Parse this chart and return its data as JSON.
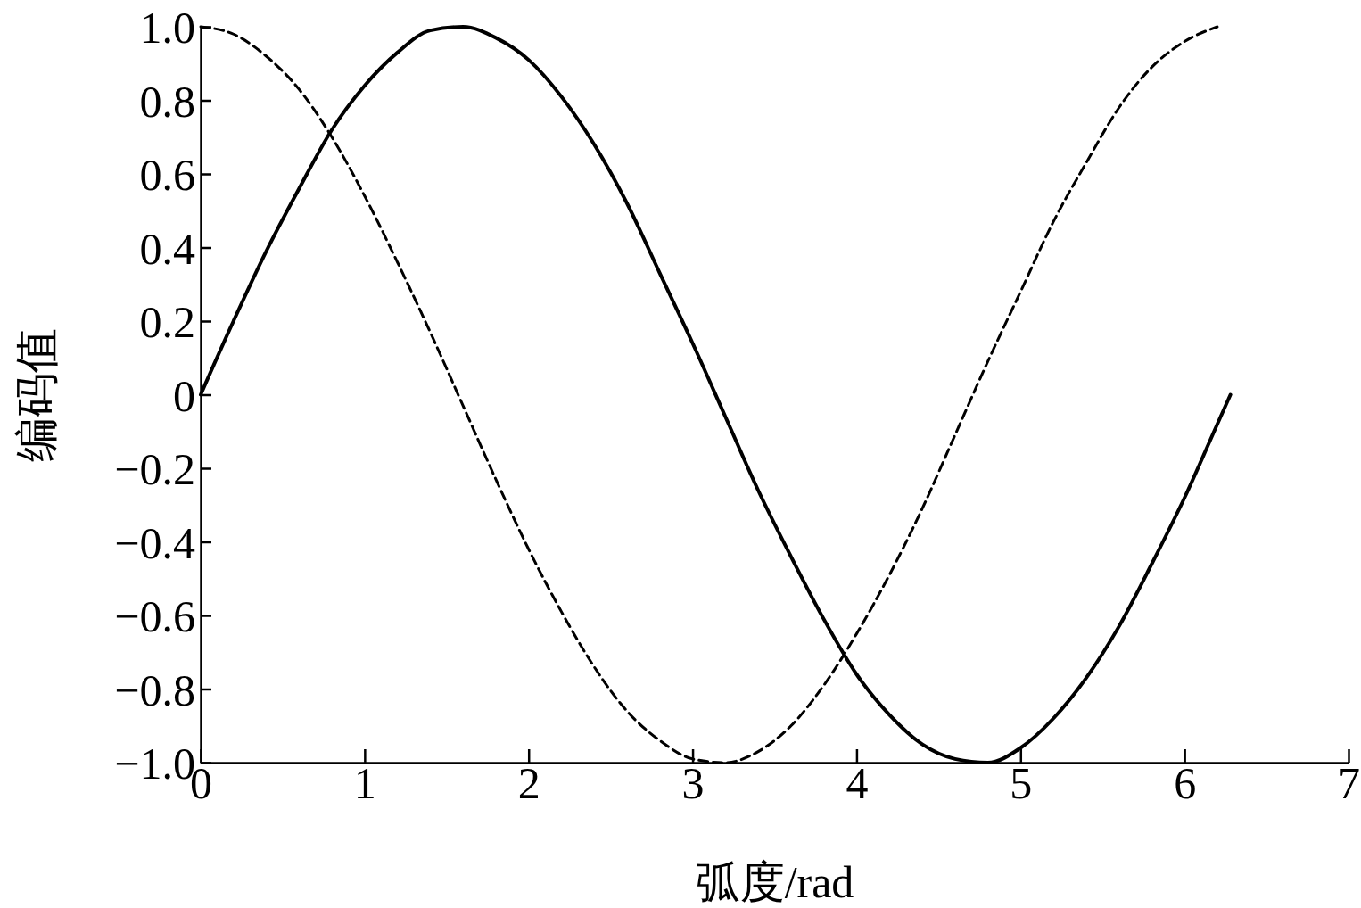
{
  "chart_data": {
    "type": "line",
    "xlabel": "弧度/rad",
    "ylabel": "编码值",
    "xlim": [
      0,
      7
    ],
    "xticks": [
      0,
      1,
      2,
      3,
      4,
      5,
      6,
      7
    ],
    "ylim": [
      -1,
      1
    ],
    "yticks": [
      {
        "value": 1,
        "label": "1.0"
      },
      {
        "value": 0.8,
        "label": "0.8"
      },
      {
        "value": 0.6,
        "label": "0.6"
      },
      {
        "value": 0.4,
        "label": "0.4"
      },
      {
        "value": 0.2,
        "label": "0.2"
      },
      0,
      {
        "value": -0.2,
        "label": "−0.2"
      },
      {
        "value": -0.4,
        "label": "−0.4"
      },
      {
        "value": -0.6,
        "label": "−0.6"
      },
      {
        "value": -0.8,
        "label": "−0.8"
      },
      {
        "value": -1,
        "label": "−1.0"
      }
    ],
    "series": [
      {
        "color": "#000000",
        "line_style": "solid",
        "x": [
          0,
          0.2,
          0.4,
          0.6,
          0.8,
          1.0,
          1.2,
          1.4,
          1.6,
          1.8,
          2.0,
          2.2,
          2.4,
          2.6,
          2.8,
          3.0,
          3.2,
          3.4,
          3.6,
          3.8,
          4.0,
          4.2,
          4.4,
          4.6,
          4.8,
          5.0,
          5.2,
          5.4,
          5.6,
          5.8,
          6.0,
          6.2,
          6.28
        ],
        "values": [
          0,
          0.2,
          0.39,
          0.56,
          0.72,
          0.84,
          0.93,
          0.99,
          1.0,
          0.97,
          0.91,
          0.81,
          0.68,
          0.52,
          0.33,
          0.14,
          -0.06,
          -0.26,
          -0.44,
          -0.61,
          -0.76,
          -0.87,
          -0.95,
          -0.99,
          -1.0,
          -0.96,
          -0.88,
          -0.77,
          -0.63,
          -0.46,
          -0.28,
          -0.08,
          0.0
        ]
      },
      {
        "color": "#000000",
        "line_style": "dashed",
        "x": [
          0,
          0.2,
          0.4,
          0.6,
          0.8,
          1.0,
          1.2,
          1.4,
          1.6,
          1.8,
          2.0,
          2.2,
          2.4,
          2.6,
          2.8,
          3.0,
          3.2,
          3.4,
          3.6,
          3.8,
          4.0,
          4.2,
          4.4,
          4.6,
          4.8,
          5.0,
          5.2,
          5.4,
          5.6,
          5.8,
          6.0,
          6.2
        ],
        "values": [
          1,
          0.98,
          0.92,
          0.83,
          0.7,
          0.54,
          0.36,
          0.17,
          -0.03,
          -0.23,
          -0.42,
          -0.59,
          -0.74,
          -0.86,
          -0.94,
          -0.99,
          -1.0,
          -0.97,
          -0.9,
          -0.79,
          -0.65,
          -0.49,
          -0.31,
          -0.11,
          0.09,
          0.28,
          0.47,
          0.63,
          0.78,
          0.89,
          0.96,
          1.0
        ]
      }
    ]
  }
}
